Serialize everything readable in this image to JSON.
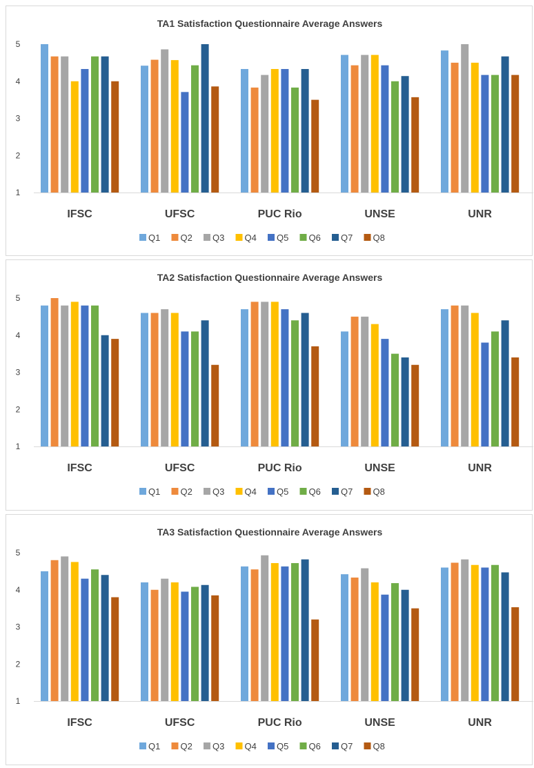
{
  "colors": {
    "Q1": "#6fa8dc",
    "Q2": "#ee8a3c",
    "Q3": "#a6a6a6",
    "Q4": "#ffc000",
    "Q5": "#4472c4",
    "Q6": "#70ad47",
    "Q7": "#255e91",
    "Q8": "#b45a12",
    "axis": "#d9d9d9",
    "text": "#404040"
  },
  "chart_data": [
    {
      "type": "bar",
      "title": "TA1 Satisfaction Questionnaire Average Answers",
      "categories": [
        "IFSC",
        "UFSC",
        "PUC Rio",
        "UNSE",
        "UNR"
      ],
      "ylim": [
        1,
        5
      ],
      "yticks": [
        1,
        2,
        3,
        4,
        5
      ],
      "grid": false,
      "legend": "bottom",
      "series": [
        {
          "name": "Q1",
          "values": [
            5.0,
            4.42,
            4.33,
            4.71,
            4.83
          ]
        },
        {
          "name": "Q2",
          "values": [
            4.67,
            4.58,
            3.83,
            4.43,
            4.5
          ]
        },
        {
          "name": "Q3",
          "values": [
            4.67,
            4.86,
            4.17,
            4.71,
            5.0
          ]
        },
        {
          "name": "Q4",
          "values": [
            4.0,
            4.57,
            4.33,
            4.71,
            4.5
          ]
        },
        {
          "name": "Q5",
          "values": [
            4.33,
            3.71,
            4.33,
            4.43,
            4.17
          ]
        },
        {
          "name": "Q6",
          "values": [
            4.67,
            4.43,
            3.83,
            4.0,
            4.17
          ]
        },
        {
          "name": "Q7",
          "values": [
            4.67,
            5.0,
            4.33,
            4.14,
            4.67
          ]
        },
        {
          "name": "Q8",
          "values": [
            4.0,
            3.86,
            3.5,
            3.57,
            4.17
          ]
        }
      ]
    },
    {
      "type": "bar",
      "title": "TA2 Satisfaction Questionnaire Average Answers",
      "categories": [
        "IFSC",
        "UFSC",
        "PUC Rio",
        "UNSE",
        "UNR"
      ],
      "ylim": [
        1,
        5
      ],
      "yticks": [
        1,
        2,
        3,
        4,
        5
      ],
      "grid": false,
      "legend": "bottom",
      "series": [
        {
          "name": "Q1",
          "values": [
            4.8,
            4.6,
            4.7,
            4.1,
            4.7
          ]
        },
        {
          "name": "Q2",
          "values": [
            5.0,
            4.6,
            4.9,
            4.5,
            4.8
          ]
        },
        {
          "name": "Q3",
          "values": [
            4.8,
            4.7,
            4.9,
            4.5,
            4.8
          ]
        },
        {
          "name": "Q4",
          "values": [
            4.9,
            4.6,
            4.9,
            4.3,
            4.6
          ]
        },
        {
          "name": "Q5",
          "values": [
            4.8,
            4.1,
            4.7,
            3.9,
            3.8
          ]
        },
        {
          "name": "Q6",
          "values": [
            4.8,
            4.1,
            4.4,
            3.5,
            4.1
          ]
        },
        {
          "name": "Q7",
          "values": [
            4.0,
            4.4,
            4.6,
            3.4,
            4.4
          ]
        },
        {
          "name": "Q8",
          "values": [
            3.9,
            3.2,
            3.7,
            3.2,
            3.4
          ]
        }
      ]
    },
    {
      "type": "bar",
      "title": "TA3 Satisfaction Questionnaire Average Answers",
      "categories": [
        "IFSC",
        "UFSC",
        "PUC Rio",
        "UNSE",
        "UNR"
      ],
      "ylim": [
        1,
        5
      ],
      "yticks": [
        1,
        2,
        3,
        4,
        5
      ],
      "grid": false,
      "legend": "bottom",
      "series": [
        {
          "name": "Q1",
          "values": [
            4.5,
            4.2,
            4.63,
            4.42,
            4.6
          ]
        },
        {
          "name": "Q2",
          "values": [
            4.8,
            4.0,
            4.55,
            4.33,
            4.73
          ]
        },
        {
          "name": "Q3",
          "values": [
            4.9,
            4.3,
            4.93,
            4.58,
            4.82
          ]
        },
        {
          "name": "Q4",
          "values": [
            4.75,
            4.2,
            4.72,
            4.2,
            4.67
          ]
        },
        {
          "name": "Q5",
          "values": [
            4.3,
            3.95,
            4.63,
            3.87,
            4.6
          ]
        },
        {
          "name": "Q6",
          "values": [
            4.55,
            4.08,
            4.72,
            4.18,
            4.67
          ]
        },
        {
          "name": "Q7",
          "values": [
            4.4,
            4.13,
            4.82,
            4.0,
            4.47
          ]
        },
        {
          "name": "Q8",
          "values": [
            3.8,
            3.85,
            3.2,
            3.5,
            3.53
          ]
        }
      ]
    }
  ]
}
